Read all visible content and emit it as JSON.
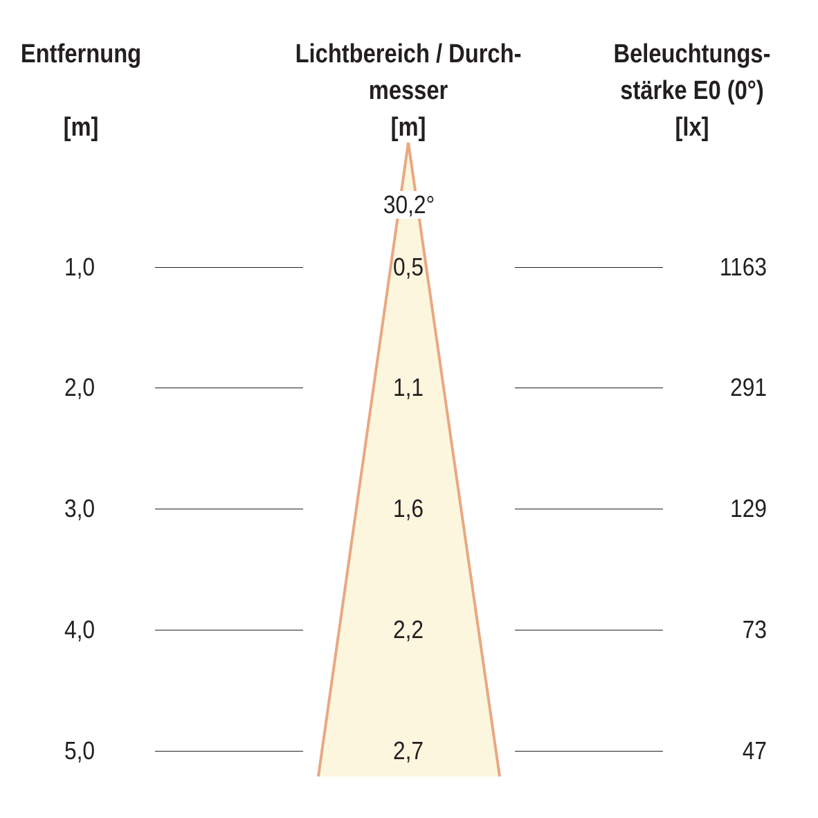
{
  "headers": {
    "distance": [
      "Entfernung",
      "",
      "[m]"
    ],
    "diameter": [
      "Lichtbereich / Durch-",
      "messer",
      "[m]"
    ],
    "illuminance": [
      "Beleuchtungs-",
      "stärke E0 (0°)",
      "[lx]"
    ]
  },
  "beam": {
    "angle_label": "30,2°",
    "fill_color": "#fdf6df",
    "edge_color": "#e8a882"
  },
  "rows": [
    {
      "distance": "1,0",
      "diameter": "0,5",
      "illuminance": "1163"
    },
    {
      "distance": "2,0",
      "diameter": "1,1",
      "illuminance": "291"
    },
    {
      "distance": "3,0",
      "diameter": "1,6",
      "illuminance": "129"
    },
    {
      "distance": "4,0",
      "diameter": "2,2",
      "illuminance": "73"
    },
    {
      "distance": "5,0",
      "diameter": "2,7",
      "illuminance": "47"
    }
  ]
}
